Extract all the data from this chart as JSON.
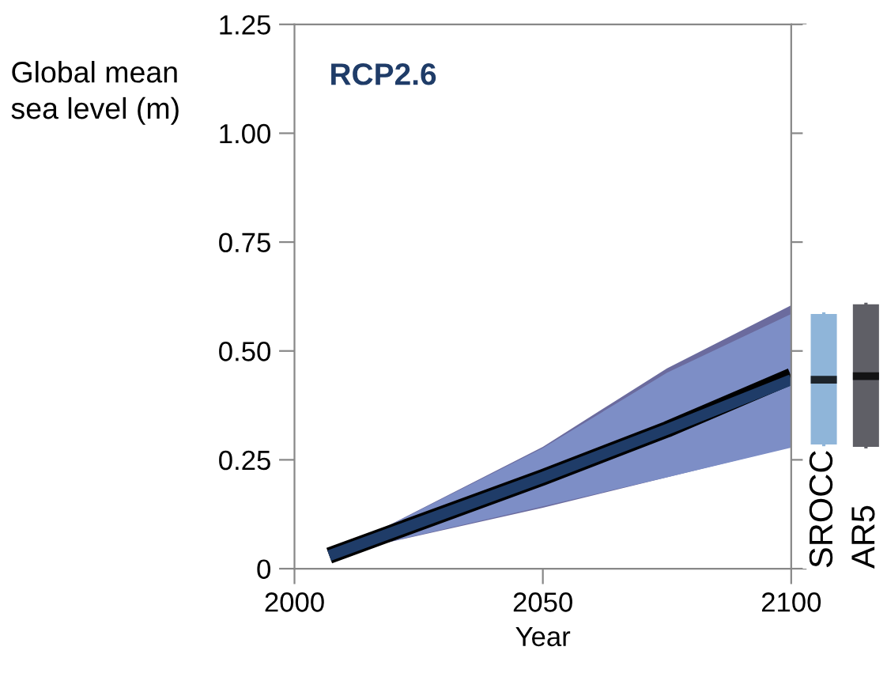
{
  "chart_data": [
    {
      "type": "line",
      "title": "RCP2.6",
      "xlabel": "Year",
      "ylabel": "Global mean\nsea level (m)",
      "xlim": [
        2000,
        2100
      ],
      "xticks": [
        2000,
        2050,
        2100
      ],
      "ylim": [
        0,
        1.25
      ],
      "yticks": [
        0,
        0.25,
        {
          "value": 0.5,
          "label": "0.50"
        },
        0.75,
        {
          "value": 1.0,
          "label": "1.00"
        },
        1.25
      ],
      "grid": false,
      "legend": false,
      "series": [
        {
          "type": "line",
          "x": [
            2007,
            2050,
            2075,
            2100
          ],
          "values": [
            0.03,
            0.21,
            0.32,
            0.442
          ],
          "lower": [
            0.03,
            0.14,
            0.21,
            0.28
          ],
          "upper": [
            0.03,
            0.28,
            0.46,
            0.605
          ],
          "color": "#000000"
        },
        {
          "type": "line",
          "x": [
            2007,
            2050,
            2075,
            2100
          ],
          "values": [
            0.03,
            0.21,
            0.32,
            0.434
          ],
          "lower": [
            0.03,
            0.143,
            0.21,
            0.278
          ],
          "upper": [
            0.03,
            0.277,
            0.45,
            0.585
          ],
          "color": "#1f3c68"
        }
      ]
    },
    {
      "type": "box",
      "categories": [
        "SROCC",
        "AR5"
      ],
      "ylim": [
        0,
        1.25
      ],
      "tick_labels": "x",
      "colors": [
        "#8fb5d9",
        "#5f5f66"
      ],
      "boxes": [
        {
          "low": 0.285,
          "q1": 0.285,
          "median": 0.434,
          "q3": 0.585,
          "high": 0.585
        },
        {
          "low": 0.28,
          "q1": 0.28,
          "median": 0.442,
          "q3": 0.607,
          "high": 0.607
        }
      ]
    }
  ]
}
